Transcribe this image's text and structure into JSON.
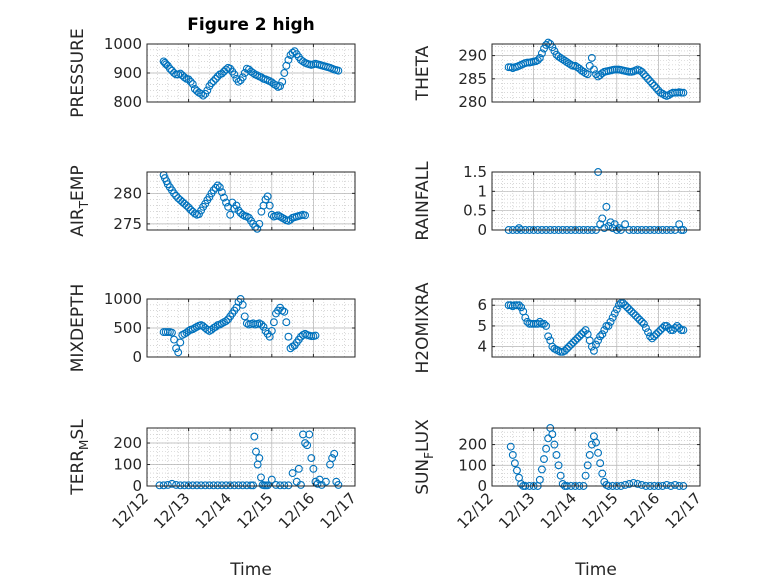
{
  "figure": {
    "title": "Figure 2 high",
    "xlabel": "Time",
    "colors": {
      "marker": "#0072bd",
      "axes": "#262626",
      "grid": "#c0c0c0",
      "background": "#ffffff"
    }
  },
  "chart_data": [
    {
      "type": "scatter",
      "panel": "pressure",
      "ylabel": "PRESSURE",
      "ylim": [
        800,
        1000
      ],
      "yticks": [
        800,
        900,
        1000
      ],
      "xlim": [
        0,
        5
      ],
      "xticks": [
        0,
        1,
        2,
        3,
        4,
        5
      ],
      "xticklabels": [],
      "x": [
        0.4,
        0.43,
        0.46,
        0.5,
        0.55,
        0.6,
        0.65,
        0.7,
        0.75,
        0.8,
        0.85,
        0.9,
        0.95,
        1.0,
        1.05,
        1.1,
        1.15,
        1.2,
        1.25,
        1.3,
        1.35,
        1.4,
        1.45,
        1.5,
        1.55,
        1.6,
        1.65,
        1.7,
        1.75,
        1.8,
        1.85,
        1.9,
        1.95,
        2.0,
        2.05,
        2.1,
        2.15,
        2.2,
        2.25,
        2.3,
        2.35,
        2.4,
        2.45,
        2.5,
        2.55,
        2.6,
        2.65,
        2.7,
        2.75,
        2.8,
        2.85,
        2.9,
        2.95,
        3.0,
        3.05,
        3.1,
        3.15,
        3.2,
        3.25,
        3.3,
        3.35,
        3.4,
        3.45,
        3.5,
        3.55,
        3.6,
        3.65,
        3.7,
        3.75,
        3.8,
        3.85,
        3.9,
        3.95,
        4.0,
        4.05,
        4.1,
        4.15,
        4.2,
        4.25,
        4.3,
        4.35,
        4.4,
        4.45,
        4.5,
        4.55,
        4.6
      ],
      "y": [
        940,
        935,
        930,
        925,
        915,
        908,
        900,
        895,
        895,
        898,
        892,
        885,
        880,
        878,
        870,
        862,
        845,
        838,
        832,
        828,
        822,
        828,
        840,
        855,
        865,
        872,
        880,
        888,
        895,
        898,
        905,
        912,
        918,
        915,
        905,
        895,
        880,
        870,
        875,
        885,
        900,
        915,
        912,
        905,
        900,
        895,
        892,
        888,
        885,
        880,
        878,
        875,
        872,
        868,
        862,
        858,
        852,
        855,
        870,
        900,
        925,
        945,
        962,
        970,
        975,
        965,
        955,
        945,
        940,
        935,
        932,
        930,
        928,
        930,
        932,
        930,
        928,
        926,
        924,
        922,
        920,
        918,
        915,
        912,
        910,
        908
      ]
    },
    {
      "type": "scatter",
      "panel": "theta",
      "ylabel": "THETA",
      "ylim": [
        280,
        292.5
      ],
      "yticks": [
        280,
        285,
        290
      ],
      "xlim": [
        0,
        5
      ],
      "xticks": [
        0,
        1,
        2,
        3,
        4,
        5
      ],
      "xticklabels": [],
      "x": [
        0.4,
        0.45,
        0.5,
        0.55,
        0.6,
        0.65,
        0.7,
        0.75,
        0.8,
        0.85,
        0.9,
        0.95,
        1.0,
        1.05,
        1.1,
        1.15,
        1.2,
        1.25,
        1.3,
        1.35,
        1.4,
        1.45,
        1.5,
        1.55,
        1.6,
        1.65,
        1.7,
        1.75,
        1.8,
        1.85,
        1.9,
        1.95,
        2.0,
        2.05,
        2.1,
        2.15,
        2.2,
        2.25,
        2.3,
        2.35,
        2.4,
        2.45,
        2.5,
        2.55,
        2.6,
        2.65,
        2.7,
        2.75,
        2.8,
        2.85,
        2.9,
        2.95,
        3.0,
        3.05,
        3.1,
        3.15,
        3.2,
        3.25,
        3.3,
        3.35,
        3.4,
        3.45,
        3.5,
        3.55,
        3.6,
        3.65,
        3.7,
        3.75,
        3.8,
        3.85,
        3.9,
        3.95,
        4.0,
        4.05,
        4.1,
        4.15,
        4.2,
        4.25,
        4.3,
        4.35,
        4.4,
        4.45,
        4.5,
        4.55,
        4.6
      ],
      "y": [
        287.5,
        287.5,
        287.3,
        287.5,
        287.6,
        287.8,
        288.0,
        288.2,
        288.4,
        288.5,
        288.5,
        288.6,
        288.7,
        288.8,
        289.0,
        289.5,
        290.5,
        291.5,
        292.3,
        292.8,
        292.5,
        291.8,
        291.0,
        290.2,
        289.8,
        289.5,
        289.2,
        288.9,
        288.6,
        288.3,
        288.0,
        287.8,
        287.8,
        287.5,
        287.2,
        286.8,
        286.5,
        286.2,
        286.0,
        287.8,
        289.5,
        287.0,
        286.0,
        285.5,
        285.8,
        286.2,
        286.5,
        286.6,
        286.7,
        286.8,
        286.9,
        287.0,
        287.0,
        287.0,
        286.9,
        286.8,
        286.7,
        286.6,
        286.5,
        286.5,
        286.6,
        286.8,
        287.0,
        286.8,
        286.5,
        286.0,
        285.5,
        285.0,
        284.5,
        284.0,
        283.5,
        283.0,
        282.5,
        282.0,
        281.8,
        281.5,
        281.3,
        281.5,
        281.8,
        282.0,
        282.0,
        282.0,
        282.1,
        282.0,
        282.0
      ]
    },
    {
      "type": "scatter",
      "panel": "air_temp",
      "ylabel": "AIR_TEMP",
      "ylabel_display": {
        "main": "AIR",
        "sub": "T",
        "rest": "EMP"
      },
      "ylim": [
        274,
        283.5
      ],
      "yticks": [
        275,
        280
      ],
      "xlim": [
        0,
        5
      ],
      "xticks": [
        0,
        1,
        2,
        3,
        4,
        5
      ],
      "xticklabels": [],
      "x": [
        0.4,
        0.43,
        0.47,
        0.5,
        0.55,
        0.6,
        0.65,
        0.7,
        0.75,
        0.8,
        0.85,
        0.9,
        0.95,
        1.0,
        1.05,
        1.1,
        1.15,
        1.2,
        1.25,
        1.3,
        1.35,
        1.4,
        1.45,
        1.5,
        1.55,
        1.6,
        1.65,
        1.7,
        1.75,
        1.8,
        1.85,
        1.9,
        1.95,
        2.0,
        2.05,
        2.1,
        2.15,
        2.2,
        2.25,
        2.3,
        2.35,
        2.4,
        2.45,
        2.5,
        2.55,
        2.6,
        2.65,
        2.7,
        2.75,
        2.8,
        2.85,
        2.9,
        2.95,
        3.0,
        3.05,
        3.1,
        3.15,
        3.2,
        3.25,
        3.3,
        3.35,
        3.4,
        3.45,
        3.5,
        3.55,
        3.6,
        3.65,
        3.7,
        3.75,
        3.8
      ],
      "y": [
        283.0,
        282.5,
        282.0,
        281.5,
        281.0,
        280.5,
        280.0,
        279.6,
        279.2,
        278.9,
        278.6,
        278.3,
        278.0,
        277.7,
        277.3,
        277.0,
        276.7,
        276.5,
        276.6,
        277.2,
        277.8,
        278.3,
        278.9,
        279.4,
        280.0,
        280.5,
        280.9,
        281.3,
        281.0,
        280.2,
        279.3,
        278.5,
        277.8,
        276.5,
        278.5,
        277.5,
        278.0,
        277.2,
        276.8,
        276.5,
        276.3,
        276.2,
        276.0,
        275.5,
        275.0,
        274.5,
        274.2,
        275.0,
        277.0,
        278.0,
        279.0,
        279.5,
        278.0,
        276.5,
        276.2,
        276.3,
        276.4,
        276.2,
        276.0,
        275.8,
        275.6,
        275.5,
        275.7,
        276.0,
        276.1,
        276.2,
        276.3,
        276.4,
        276.5,
        276.4
      ]
    },
    {
      "type": "scatter",
      "panel": "rainfall",
      "ylabel": "RAINFALL",
      "ylim": [
        0,
        1.5
      ],
      "yticks": [
        0,
        0.5,
        1,
        1.5
      ],
      "xlim": [
        0,
        5
      ],
      "xticks": [
        0,
        1,
        2,
        3,
        4,
        5
      ],
      "xticklabels": [],
      "x": [
        0.4,
        0.5,
        0.6,
        0.65,
        0.7,
        0.8,
        0.9,
        1.0,
        1.1,
        1.2,
        1.3,
        1.4,
        1.5,
        1.6,
        1.7,
        1.8,
        1.9,
        2.0,
        2.1,
        2.2,
        2.3,
        2.4,
        2.5,
        2.55,
        2.6,
        2.65,
        2.7,
        2.75,
        2.8,
        2.85,
        2.9,
        2.95,
        3.0,
        3.05,
        3.1,
        3.2,
        3.3,
        3.4,
        3.5,
        3.6,
        3.7,
        3.8,
        3.9,
        4.0,
        4.1,
        4.2,
        4.3,
        4.4,
        4.5,
        4.55,
        4.6
      ],
      "y": [
        0,
        0,
        0,
        0.05,
        0,
        0,
        0,
        0,
        0,
        0,
        0,
        0,
        0,
        0,
        0,
        0,
        0,
        0,
        0,
        0,
        0,
        0,
        0,
        1.5,
        0.15,
        0.3,
        0.05,
        0.6,
        0.1,
        0.2,
        0.05,
        0.15,
        0,
        0.05,
        0,
        0.15,
        0,
        0,
        0,
        0,
        0,
        0,
        0,
        0,
        0,
        0,
        0,
        0,
        0.15,
        0,
        0
      ]
    },
    {
      "type": "scatter",
      "panel": "mixdepth",
      "ylabel": "MIXDEPTH",
      "ylim": [
        0,
        1000
      ],
      "yticks": [
        0,
        500,
        1000
      ],
      "xlim": [
        0,
        5
      ],
      "xticks": [
        0,
        1,
        2,
        3,
        4,
        5
      ],
      "xticklabels": [],
      "x": [
        0.4,
        0.45,
        0.5,
        0.55,
        0.6,
        0.65,
        0.7,
        0.75,
        0.8,
        0.85,
        0.9,
        0.95,
        1.0,
        1.05,
        1.1,
        1.15,
        1.2,
        1.25,
        1.3,
        1.35,
        1.4,
        1.45,
        1.5,
        1.55,
        1.6,
        1.65,
        1.7,
        1.75,
        1.8,
        1.85,
        1.9,
        1.95,
        2.0,
        2.05,
        2.1,
        2.15,
        2.2,
        2.25,
        2.3,
        2.35,
        2.4,
        2.45,
        2.5,
        2.55,
        2.6,
        2.65,
        2.7,
        2.75,
        2.8,
        2.85,
        2.9,
        2.95,
        3.0,
        3.05,
        3.1,
        3.15,
        3.2,
        3.25,
        3.3,
        3.35,
        3.4,
        3.45,
        3.5,
        3.55,
        3.6,
        3.65,
        3.7,
        3.75,
        3.8,
        3.85,
        3.9,
        3.95,
        4.0,
        4.05
      ],
      "y": [
        430,
        430,
        430,
        430,
        420,
        300,
        150,
        80,
        250,
        380,
        400,
        420,
        450,
        470,
        480,
        500,
        520,
        540,
        550,
        530,
        500,
        470,
        450,
        470,
        500,
        520,
        550,
        560,
        580,
        600,
        620,
        650,
        700,
        750,
        800,
        850,
        950,
        1000,
        900,
        700,
        580,
        560,
        570,
        580,
        560,
        570,
        580,
        560,
        520,
        450,
        400,
        350,
        450,
        600,
        750,
        800,
        850,
        800,
        780,
        600,
        350,
        150,
        180,
        200,
        250,
        300,
        350,
        380,
        400,
        380,
        370,
        360,
        360,
        370
      ]
    },
    {
      "type": "scatter",
      "panel": "h2omixra",
      "ylabel": "H2OMIXRA",
      "ylim": [
        3.5,
        6.3
      ],
      "yticks": [
        4,
        5,
        6
      ],
      "xlim": [
        0,
        5
      ],
      "xticks": [
        0,
        1,
        2,
        3,
        4,
        5
      ],
      "xticklabels": [],
      "x": [
        0.4,
        0.45,
        0.5,
        0.55,
        0.6,
        0.65,
        0.7,
        0.75,
        0.8,
        0.85,
        0.9,
        0.95,
        1.0,
        1.05,
        1.1,
        1.15,
        1.2,
        1.25,
        1.3,
        1.35,
        1.4,
        1.45,
        1.5,
        1.55,
        1.6,
        1.65,
        1.7,
        1.75,
        1.8,
        1.85,
        1.9,
        1.95,
        2.0,
        2.05,
        2.1,
        2.15,
        2.2,
        2.25,
        2.3,
        2.35,
        2.4,
        2.45,
        2.5,
        2.55,
        2.6,
        2.65,
        2.7,
        2.75,
        2.8,
        2.85,
        2.9,
        2.95,
        3.0,
        3.05,
        3.1,
        3.15,
        3.2,
        3.25,
        3.3,
        3.35,
        3.4,
        3.45,
        3.5,
        3.55,
        3.6,
        3.65,
        3.7,
        3.75,
        3.8,
        3.85,
        3.9,
        3.95,
        4.0,
        4.05,
        4.1,
        4.15,
        4.2,
        4.25,
        4.3,
        4.35,
        4.4,
        4.45,
        4.5,
        4.55,
        4.6
      ],
      "y": [
        6.0,
        6.0,
        5.95,
        6.0,
        6.0,
        6.0,
        5.9,
        5.7,
        5.4,
        5.2,
        5.1,
        5.1,
        5.1,
        5.1,
        5.1,
        5.2,
        5.1,
        5.1,
        5.0,
        4.5,
        4.3,
        4.0,
        3.9,
        3.85,
        3.8,
        3.75,
        3.75,
        3.8,
        3.9,
        4.0,
        4.1,
        4.2,
        4.3,
        4.4,
        4.5,
        4.6,
        4.7,
        4.8,
        4.6,
        4.3,
        4.0,
        3.8,
        4.1,
        4.3,
        4.5,
        4.6,
        4.8,
        5.0,
        5.0,
        5.2,
        5.4,
        5.6,
        5.8,
        6.0,
        6.1,
        6.1,
        6.0,
        5.9,
        5.8,
        5.7,
        5.6,
        5.5,
        5.4,
        5.3,
        5.2,
        5.1,
        4.9,
        4.7,
        4.5,
        4.4,
        4.5,
        4.6,
        4.7,
        4.8,
        4.9,
        5.0,
        5.0,
        4.9,
        4.8,
        4.8,
        4.9,
        5.0,
        4.9,
        4.8,
        4.8
      ]
    },
    {
      "type": "scatter",
      "panel": "terr_msl",
      "ylabel": "TERR_MSL",
      "ylabel_display": {
        "main": "TERR",
        "sub": "M",
        "rest": "SL"
      },
      "ylim": [
        0,
        270
      ],
      "yticks": [
        0,
        100,
        200
      ],
      "xlim": [
        0,
        5
      ],
      "xticks": [
        0,
        1,
        2,
        3,
        4,
        5
      ],
      "xticklabels": [
        "12/12",
        "12/13",
        "12/14",
        "12/15",
        "12/16",
        "12/17"
      ],
      "x": [
        0.3,
        0.4,
        0.5,
        0.6,
        0.7,
        0.8,
        0.9,
        1.0,
        1.1,
        1.2,
        1.3,
        1.4,
        1.5,
        1.6,
        1.7,
        1.8,
        1.9,
        2.0,
        2.1,
        2.2,
        2.3,
        2.4,
        2.5,
        2.55,
        2.58,
        2.62,
        2.66,
        2.7,
        2.74,
        2.78,
        2.82,
        2.86,
        2.9,
        3.0,
        3.1,
        3.2,
        3.3,
        3.4,
        3.5,
        3.6,
        3.65,
        3.7,
        3.75,
        3.8,
        3.85,
        3.9,
        3.95,
        4.0,
        4.05,
        4.1,
        4.15,
        4.2,
        4.3,
        4.4,
        4.45,
        4.5,
        4.55,
        4.6
      ],
      "y": [
        3,
        3,
        5,
        10,
        5,
        3,
        3,
        3,
        3,
        3,
        3,
        3,
        3,
        3,
        3,
        3,
        3,
        3,
        3,
        3,
        3,
        3,
        3,
        3,
        230,
        160,
        100,
        130,
        40,
        5,
        3,
        3,
        3,
        30,
        5,
        3,
        3,
        3,
        60,
        20,
        80,
        5,
        240,
        200,
        190,
        240,
        130,
        80,
        20,
        10,
        30,
        5,
        20,
        100,
        130,
        150,
        20,
        5
      ]
    },
    {
      "type": "scatter",
      "panel": "sun_flux",
      "ylabel": "SUN_FLUX",
      "ylabel_display": {
        "main": "SUN",
        "sub": "F",
        "rest": "LUX"
      },
      "ylim": [
        0,
        280
      ],
      "yticks": [
        0,
        100,
        200
      ],
      "xlim": [
        0,
        5
      ],
      "xticks": [
        0,
        1,
        2,
        3,
        4,
        5
      ],
      "xticklabels": [
        "12/12",
        "12/13",
        "12/14",
        "12/15",
        "12/16",
        "12/17"
      ],
      "x": [
        0.45,
        0.5,
        0.55,
        0.6,
        0.65,
        0.7,
        0.75,
        0.8,
        0.9,
        1.0,
        1.1,
        1.15,
        1.2,
        1.25,
        1.3,
        1.35,
        1.4,
        1.45,
        1.5,
        1.55,
        1.6,
        1.65,
        1.7,
        1.75,
        1.8,
        1.9,
        2.0,
        2.1,
        2.2,
        2.25,
        2.3,
        2.35,
        2.4,
        2.45,
        2.5,
        2.55,
        2.6,
        2.65,
        2.7,
        2.75,
        2.8,
        2.9,
        3.0,
        3.1,
        3.2,
        3.3,
        3.4,
        3.5,
        3.6,
        3.7,
        3.8,
        3.9,
        4.0,
        4.1,
        4.2,
        4.3,
        4.4,
        4.5,
        4.6
      ],
      "y": [
        190,
        150,
        110,
        75,
        40,
        10,
        0,
        0,
        0,
        0,
        0,
        30,
        80,
        130,
        180,
        230,
        280,
        250,
        200,
        150,
        100,
        50,
        10,
        0,
        0,
        0,
        0,
        0,
        0,
        50,
        100,
        150,
        200,
        240,
        210,
        160,
        110,
        60,
        20,
        5,
        0,
        0,
        0,
        0,
        5,
        10,
        15,
        10,
        5,
        0,
        0,
        0,
        0,
        0,
        5,
        0,
        5,
        0,
        0
      ]
    }
  ]
}
